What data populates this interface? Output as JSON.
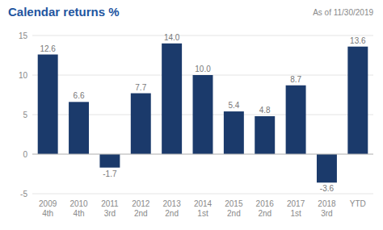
{
  "chart_data": {
    "type": "bar",
    "title": "Calendar returns %",
    "subtitle": "As of 11/30/2019",
    "categories": [
      "2009\n4th",
      "2010\n4th",
      "2011\n3rd",
      "2012\n2nd",
      "2013\n2nd",
      "2014\n1st",
      "2015\n2nd",
      "2016\n2nd",
      "2017\n1st",
      "2018\n3rd",
      "YTD"
    ],
    "values": [
      12.6,
      6.6,
      -1.7,
      7.7,
      14.0,
      10.0,
      5.4,
      4.8,
      8.7,
      -3.6,
      13.6
    ],
    "value_labels": [
      "12.6",
      "6.6",
      "-1.7",
      "7.7",
      "14.0",
      "10.0",
      "5.4",
      "4.8",
      "8.7",
      "-3.6",
      "13.6"
    ],
    "data_labels": true,
    "color": "#1b3a6b",
    "ylim": [
      -5,
      15
    ],
    "yticks": [
      -5,
      0,
      5,
      10,
      15
    ],
    "grid": true
  }
}
